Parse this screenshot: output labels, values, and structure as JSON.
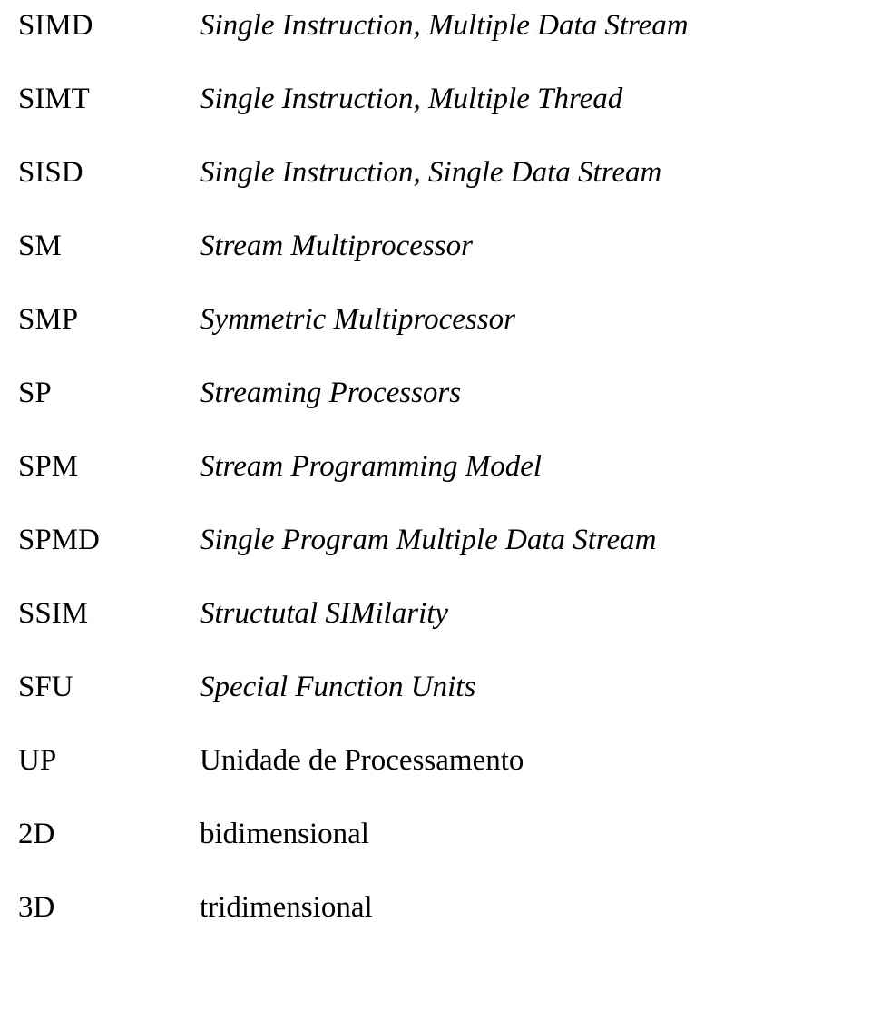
{
  "glossary": [
    {
      "abbrev": "SIMD",
      "definition": "Single Instruction, Multiple Data Stream",
      "italic": true
    },
    {
      "abbrev": "SIMT",
      "definition": "Single Instruction, Multiple Thread",
      "italic": true
    },
    {
      "abbrev": "SISD",
      "definition": "Single Instruction, Single Data Stream",
      "italic": true
    },
    {
      "abbrev": "SM",
      "definition": "Stream Multiprocessor",
      "italic": true
    },
    {
      "abbrev": "SMP",
      "definition": "Symmetric Multiprocessor",
      "italic": true
    },
    {
      "abbrev": "SP",
      "definition": "Streaming Processors",
      "italic": true
    },
    {
      "abbrev": "SPM",
      "definition": "Stream Programming Model",
      "italic": true
    },
    {
      "abbrev": "SPMD",
      "definition": "Single Program Multiple Data Stream",
      "italic": true
    },
    {
      "abbrev": "SSIM",
      "definition": "Structutal SIMilarity",
      "italic": true
    },
    {
      "abbrev": "SFU",
      "definition": "Special Function Units",
      "italic": true
    },
    {
      "abbrev": "UP",
      "definition": "Unidade de Processamento",
      "italic": false
    },
    {
      "abbrev": "2D",
      "definition": "bidimensional",
      "italic": false
    },
    {
      "abbrev": "3D",
      "definition": "tridimensional",
      "italic": false
    }
  ]
}
